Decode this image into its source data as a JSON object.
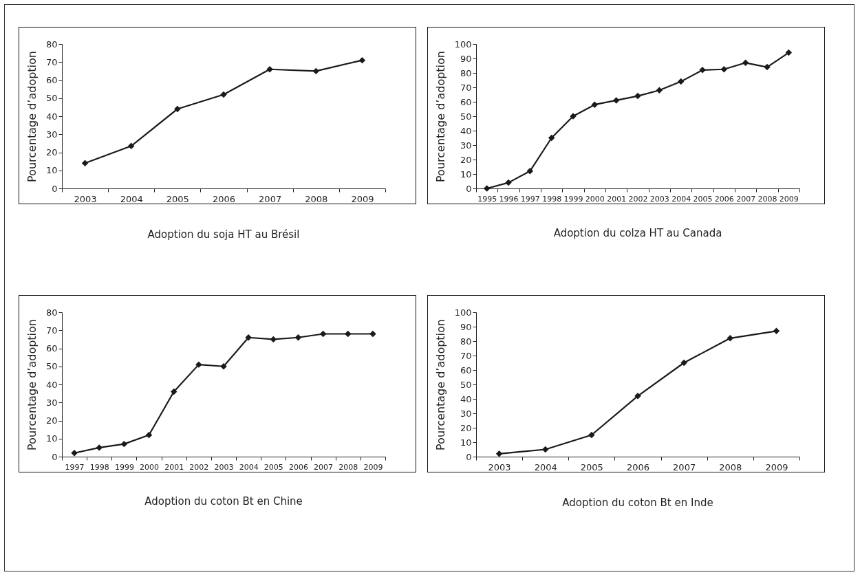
{
  "chart_data": [
    {
      "type": "line",
      "title": "Adoption du soja HT au Brésil",
      "ylabel": "Pourcentage d’adoption",
      "categories": [
        "2003",
        "2004",
        "2005",
        "2006",
        "2007",
        "2008",
        "2009"
      ],
      "series": [
        {
          "color": "#1a1a1a",
          "values": [
            14,
            23.5,
            44,
            52,
            66,
            65,
            71
          ]
        }
      ],
      "ylim": [
        0,
        80
      ],
      "yticks": [
        0,
        10,
        20,
        30,
        40,
        50,
        60,
        70,
        80
      ],
      "grid": false,
      "legend": false,
      "marker": "diamond",
      "line_style": "solid"
    },
    {
      "type": "line",
      "title": "Adoption du colza HT au Canada",
      "ylabel": "Pourcentage d’adoption",
      "categories": [
        "1995",
        "1996",
        "1997",
        "1998",
        "1999",
        "2000",
        "2001",
        "2002",
        "2003",
        "2004",
        "2005",
        "2006",
        "2007",
        "2008",
        "2009"
      ],
      "series": [
        {
          "color": "#1a1a1a",
          "values": [
            0,
            4,
            12,
            35,
            50,
            58,
            61,
            64,
            68,
            74,
            82,
            82.5,
            87,
            84,
            94
          ]
        }
      ],
      "ylim": [
        0,
        100
      ],
      "yticks": [
        0,
        10,
        20,
        30,
        40,
        50,
        60,
        70,
        80,
        90,
        100
      ],
      "grid": false,
      "legend": false,
      "marker": "diamond",
      "line_style": "solid"
    },
    {
      "type": "line",
      "title": "Adoption du coton Bt en Chine",
      "ylabel": "Pourcentage d’adoption",
      "categories": [
        "1997",
        "1998",
        "1999",
        "2000",
        "2001",
        "2002",
        "2003",
        "2004",
        "2005",
        "2006",
        "2007",
        "2008",
        "2009"
      ],
      "series": [
        {
          "color": "#1a1a1a",
          "values": [
            2,
            5,
            7,
            12,
            36,
            51,
            50,
            66,
            65,
            66,
            68,
            68,
            68
          ]
        }
      ],
      "ylim": [
        0,
        80
      ],
      "yticks": [
        0,
        10,
        20,
        30,
        40,
        50,
        60,
        70,
        80
      ],
      "grid": false,
      "legend": false,
      "marker": "diamond",
      "line_style": "solid"
    },
    {
      "type": "line",
      "title": "Adoption du coton Bt en Inde",
      "ylabel": "Pourcentage d’adoption",
      "categories": [
        "2003",
        "2004",
        "2005",
        "2006",
        "2007",
        "2008",
        "2009"
      ],
      "series": [
        {
          "color": "#1a1a1a",
          "values": [
            2,
            5,
            15,
            42,
            65,
            82,
            87
          ]
        }
      ],
      "ylim": [
        0,
        100
      ],
      "yticks": [
        0,
        10,
        20,
        30,
        40,
        50,
        60,
        70,
        80,
        90,
        100
      ],
      "grid": false,
      "legend": false,
      "marker": "diamond",
      "line_style": "solid"
    }
  ]
}
